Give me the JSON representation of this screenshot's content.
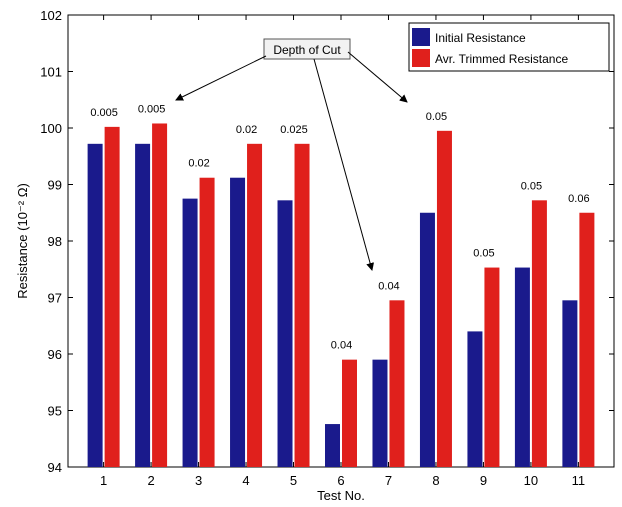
{
  "chart_data": {
    "type": "bar",
    "categories": [
      "1",
      "2",
      "3",
      "4",
      "5",
      "6",
      "7",
      "8",
      "9",
      "10",
      "11"
    ],
    "series": [
      {
        "name": "Initial Resistance",
        "color": "#1a1a8c",
        "values": [
          99.72,
          99.72,
          98.75,
          99.12,
          98.72,
          94.76,
          95.9,
          98.5,
          96.4,
          97.53,
          96.95
        ]
      },
      {
        "name": "Avr. Trimmed Resistance",
        "color": "#e0201c",
        "values": [
          100.02,
          100.08,
          99.12,
          99.72,
          99.72,
          95.9,
          96.95,
          99.95,
          97.53,
          98.72,
          98.5
        ]
      }
    ],
    "data_labels": [
      "0.005",
      "0.005",
      "0.02",
      "0.02",
      "0.025",
      "0.04",
      "0.04",
      "0.05",
      "0.05",
      "0.05",
      "0.06"
    ],
    "xlabel": "Test No.",
    "ylabel": "Resistance (10⁻² Ω)",
    "ylim": [
      94,
      102
    ],
    "yticks": [
      "94",
      "95",
      "96",
      "97",
      "98",
      "99",
      "100",
      "101",
      "102"
    ],
    "grid": false,
    "legend_position": "top-right",
    "annotation": {
      "text": "Depth of Cut",
      "points_to_categories": [
        "2",
        "7",
        "8"
      ]
    }
  }
}
